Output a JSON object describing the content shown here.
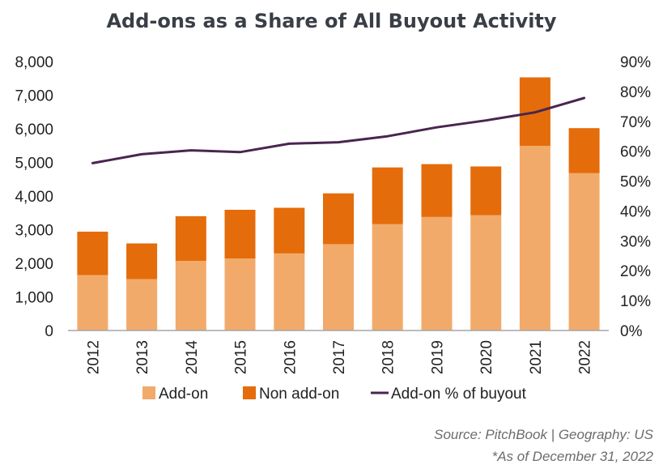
{
  "chart_data": {
    "type": "bar",
    "title": "Add-ons as a Share of All Buyout Activity",
    "categories": [
      "2012",
      "2013",
      "2014",
      "2015",
      "2016",
      "2017",
      "2018",
      "2019",
      "2020",
      "2021",
      "2022"
    ],
    "series": [
      {
        "name": "Add-on",
        "type": "bar",
        "stack": "deals",
        "axis": "left",
        "color": "#f2aa6a",
        "values": [
          1650,
          1530,
          2070,
          2140,
          2290,
          2570,
          3160,
          3380,
          3430,
          5490,
          4680
        ]
      },
      {
        "name": "Non add-on",
        "type": "bar",
        "stack": "deals",
        "axis": "left",
        "color": "#e46c0a",
        "values": [
          1290,
          1060,
          1330,
          1450,
          1360,
          1510,
          1690,
          1570,
          1450,
          2040,
          1340
        ]
      },
      {
        "name": "Add-on % of buyout",
        "type": "line",
        "axis": "right",
        "color": "#4a2550",
        "values": [
          56.0,
          59.0,
          60.3,
          59.7,
          62.5,
          63.0,
          65.0,
          68.0,
          70.3,
          73.0,
          77.8
        ]
      }
    ],
    "yleft": {
      "ylim": [
        0,
        8000
      ],
      "ticks": [
        0,
        1000,
        2000,
        3000,
        4000,
        5000,
        6000,
        7000,
        8000
      ],
      "tick_labels": [
        "0",
        "1,000",
        "2,000",
        "3,000",
        "4,000",
        "5,000",
        "6,000",
        "7,000",
        "8,000"
      ]
    },
    "yright": {
      "ylim": [
        0,
        90
      ],
      "ticks": [
        0,
        10,
        20,
        30,
        40,
        50,
        60,
        70,
        80,
        90
      ],
      "tick_labels": [
        "0%",
        "10%",
        "20%",
        "30%",
        "40%",
        "50%",
        "60%",
        "70%",
        "80%",
        "90%"
      ]
    },
    "grid": false,
    "legend_placement": "bottom"
  },
  "source_line": "Source: PitchBook | Geography: US",
  "asof_line": "*As of December 31, 2022"
}
